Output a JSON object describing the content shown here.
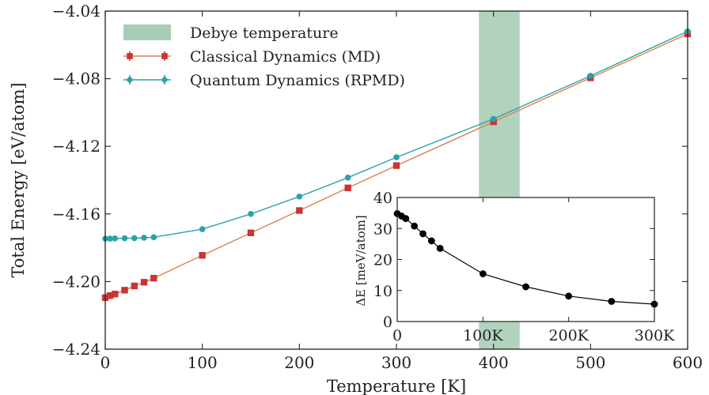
{
  "chart_data": [
    {
      "type": "line",
      "xlabel": "Temperature [K]",
      "ylabel": "Total Energy [eV/atom]",
      "xlim": [
        0,
        600
      ],
      "ylim": [
        -4.24,
        -4.04
      ],
      "xticks": [
        0,
        100,
        200,
        300,
        400,
        500,
        600
      ],
      "yticks": [
        -4.24,
        -4.2,
        -4.16,
        -4.12,
        -4.08,
        -4.04
      ],
      "xtick_labels": [
        "0",
        "100",
        "200",
        "300",
        "400",
        "500",
        "600"
      ],
      "ytick_labels": [
        "−4.24",
        "−4.20",
        "−4.16",
        "−4.12",
        "−4.08",
        "−4.04"
      ],
      "grid": false,
      "legend_position": "top-left",
      "shaded_region": {
        "label": "Debye temperature",
        "x": [
          385,
          427
        ],
        "color": "#a8cdb6"
      },
      "series": [
        {
          "name": "Classical Dynamics (MD)",
          "color": "#cc3333",
          "line_color": "#d9824e",
          "marker": "square",
          "x": [
            0,
            5,
            10,
            20,
            30,
            40,
            50,
            100,
            150,
            200,
            250,
            300,
            400,
            500,
            600
          ],
          "y": [
            -4.2095,
            -4.2083,
            -4.2074,
            -4.2051,
            -4.2026,
            -4.2004,
            -4.198,
            -4.1845,
            -4.1712,
            -4.158,
            -4.1446,
            -4.1314,
            -4.1055,
            -4.0795,
            -4.0535
          ]
        },
        {
          "name": "Quantum Dynamics (RPMD)",
          "color": "#2aa2a8",
          "line_color": "#2aa2a8",
          "marker": "circle",
          "x": [
            0,
            5,
            10,
            20,
            30,
            40,
            50,
            100,
            150,
            200,
            250,
            300,
            400,
            500,
            600
          ],
          "y": [
            -4.1746,
            -4.1746,
            -4.1745,
            -4.1744,
            -4.1743,
            -4.1741,
            -4.1738,
            -4.169,
            -4.16,
            -4.1497,
            -4.1385,
            -4.1265,
            -4.1038,
            -4.0783,
            -4.052
          ]
        }
      ]
    },
    {
      "type": "line",
      "xlabel": "",
      "ylabel": "ΔE [meV/atom]",
      "xlim": [
        0,
        300
      ],
      "ylim": [
        0,
        40
      ],
      "xticks": [
        0,
        100,
        200,
        300
      ],
      "yticks": [
        0,
        10,
        20,
        30,
        40
      ],
      "xtick_labels": [
        "0",
        "100K",
        "200K",
        "300K"
      ],
      "ytick_labels": [
        "0",
        "10",
        "20",
        "30",
        "40"
      ],
      "series": [
        {
          "color": "#000000",
          "marker": "circle",
          "x": [
            0,
            5,
            10,
            20,
            30,
            40,
            50,
            100,
            150,
            200,
            250,
            300
          ],
          "y": [
            34.8,
            34.0,
            33.2,
            30.8,
            28.3,
            26.0,
            23.6,
            15.4,
            11.2,
            8.2,
            6.5,
            5.6
          ]
        }
      ]
    }
  ]
}
